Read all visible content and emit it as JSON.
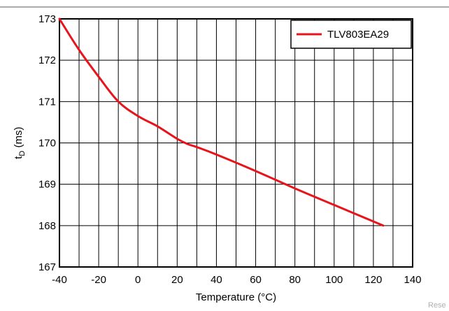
{
  "chart_data": {
    "type": "line",
    "title": "",
    "xlabel": "Temperature (°C)",
    "ylabel_main": "t",
    "ylabel_sub": "D",
    "ylabel_unit": " (ms)",
    "xlim": [
      -40,
      140
    ],
    "ylim": [
      167,
      173
    ],
    "xticks": [
      -40,
      -20,
      0,
      20,
      40,
      60,
      80,
      100,
      120,
      140
    ],
    "yticks": [
      167,
      168,
      169,
      170,
      171,
      172,
      173
    ],
    "grid": true,
    "legend_position": "top-right",
    "series": [
      {
        "name": "TLV803EA29",
        "color": "#e8141b",
        "x": [
          -40,
          -30,
          -20,
          -10,
          0,
          10,
          20,
          25,
          30,
          40,
          60,
          80,
          100,
          125
        ],
        "y": [
          173.0,
          172.25,
          171.6,
          171.0,
          170.65,
          170.4,
          170.1,
          169.98,
          169.9,
          169.72,
          169.32,
          168.9,
          168.5,
          168.0
        ]
      }
    ]
  },
  "watermark": "Rese"
}
